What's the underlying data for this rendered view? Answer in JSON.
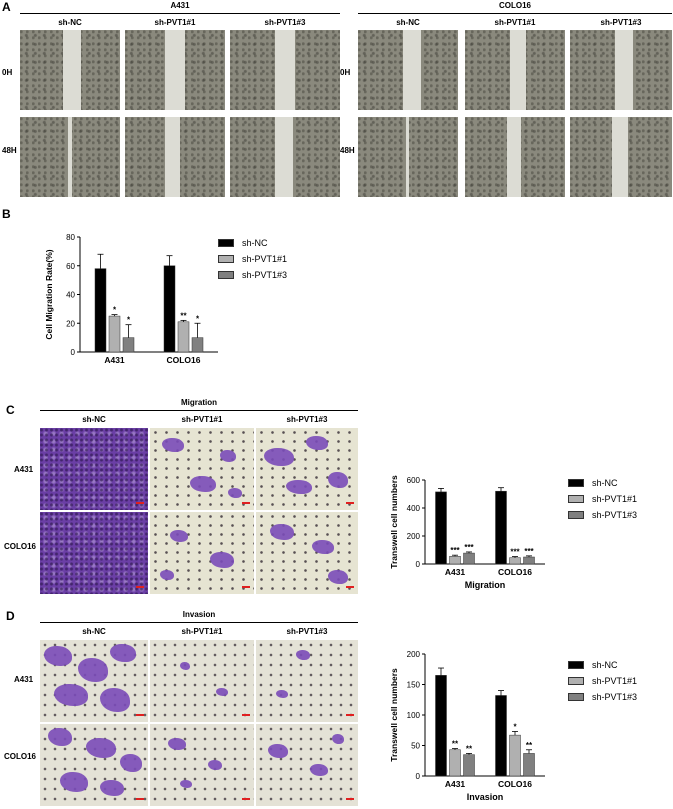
{
  "panel_labels": {
    "a": "A",
    "b": "B",
    "c": "C",
    "d": "D"
  },
  "panel_a": {
    "cell_lines": [
      "A431",
      "COLO16"
    ],
    "groups": [
      "sh-NC",
      "sh-PVT1#1",
      "sh-PVT1#3"
    ],
    "timepoints": [
      "0H",
      "48H"
    ]
  },
  "panel_c": {
    "title": "Migration",
    "groups": [
      "sh-NC",
      "sh-PVT1#1",
      "sh-PVT1#3"
    ],
    "rows": [
      "A431",
      "COLO16"
    ]
  },
  "panel_d": {
    "title": "Invasion",
    "groups": [
      "sh-NC",
      "sh-PVT1#1",
      "sh-PVT1#3"
    ],
    "rows": [
      "A431",
      "COLO16"
    ]
  },
  "legend": [
    "sh-NC",
    "sh-PVT1#1",
    "sh-PVT1#3"
  ],
  "colors": {
    "sh-NC": "#000000",
    "sh-PVT1#1": "#b0b0b0",
    "sh-PVT1#3": "#808080"
  },
  "chart_data": [
    {
      "type": "bar",
      "panel": "B",
      "categories": [
        "A431",
        "COLO16"
      ],
      "ylabel": "Cell Migration Rate(%)",
      "xlabel": "",
      "ylim": [
        0,
        80
      ],
      "yticks": [
        0,
        20,
        40,
        60,
        80
      ],
      "series": [
        {
          "name": "sh-NC",
          "values": [
            58,
            60
          ],
          "errors": [
            10,
            7
          ],
          "sig": [
            "",
            ""
          ]
        },
        {
          "name": "sh-PVT1#1",
          "values": [
            25,
            21
          ],
          "errors": [
            1,
            1
          ],
          "sig": [
            "*",
            "**"
          ]
        },
        {
          "name": "sh-PVT1#3",
          "values": [
            10,
            10
          ],
          "errors": [
            9,
            10
          ],
          "sig": [
            "*",
            "*"
          ]
        }
      ]
    },
    {
      "type": "bar",
      "panel": "C",
      "categories": [
        "A431",
        "COLO16"
      ],
      "ylabel": "Transwell cell numbers",
      "xlabel": "Migration",
      "ylim": [
        0,
        600
      ],
      "yticks": [
        0,
        200,
        400,
        600
      ],
      "series": [
        {
          "name": "sh-NC",
          "values": [
            515,
            520
          ],
          "errors": [
            25,
            25
          ],
          "sig": [
            "",
            ""
          ]
        },
        {
          "name": "sh-PVT1#1",
          "values": [
            55,
            45
          ],
          "errors": [
            8,
            8
          ],
          "sig": [
            "***",
            "***"
          ]
        },
        {
          "name": "sh-PVT1#3",
          "values": [
            78,
            50
          ],
          "errors": [
            8,
            8
          ],
          "sig": [
            "***",
            "***"
          ]
        }
      ]
    },
    {
      "type": "bar",
      "panel": "D",
      "categories": [
        "A431",
        "COLO16"
      ],
      "ylabel": "Transwell cell numbers",
      "xlabel": "Invasion",
      "ylim": [
        0,
        200
      ],
      "yticks": [
        0,
        50,
        100,
        150,
        200
      ],
      "series": [
        {
          "name": "sh-NC",
          "values": [
            165,
            132
          ],
          "errors": [
            12,
            8
          ],
          "sig": [
            "",
            ""
          ]
        },
        {
          "name": "sh-PVT1#1",
          "values": [
            43,
            67
          ],
          "errors": [
            2,
            6
          ],
          "sig": [
            "**",
            "*"
          ]
        },
        {
          "name": "sh-PVT1#3",
          "values": [
            35,
            37
          ],
          "errors": [
            2,
            6
          ],
          "sig": [
            "**",
            "**"
          ]
        }
      ]
    }
  ]
}
